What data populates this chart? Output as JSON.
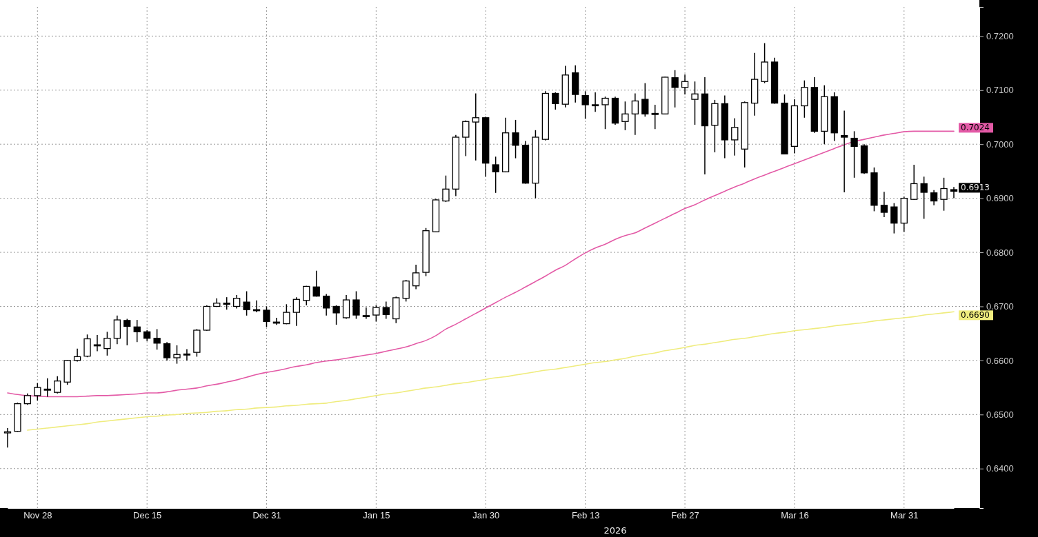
{
  "chart_data": {
    "type": "candlestick",
    "categories": [
      null,
      null,
      null,
      "Nov 28",
      null,
      null,
      null,
      null,
      null,
      null,
      null,
      null,
      null,
      null,
      "Dec 15",
      null,
      null,
      null,
      null,
      null,
      null,
      null,
      null,
      null,
      null,
      null,
      "Dec 31",
      null,
      null,
      null,
      null,
      null,
      null,
      null,
      null,
      null,
      null,
      "Jan 15",
      null,
      null,
      null,
      null,
      null,
      null,
      null,
      null,
      null,
      null,
      "Jan 30",
      null,
      null,
      null,
      null,
      null,
      null,
      null,
      null,
      null,
      "Feb 13",
      null,
      null,
      null,
      null,
      null,
      null,
      null,
      null,
      null,
      "Feb 27",
      null,
      null,
      null,
      null,
      null,
      null,
      null,
      null,
      null,
      null,
      "Mar 16",
      null,
      null,
      null,
      null,
      null,
      null,
      null,
      null,
      null,
      null,
      "Mar 31",
      null,
      null,
      null,
      null,
      null
    ],
    "ohlc": [
      [
        0.6466,
        0.6475,
        0.6439,
        0.6468
      ],
      [
        0.6469,
        0.6522,
        0.6468,
        0.652
      ],
      [
        0.652,
        0.6539,
        0.6518,
        0.6535
      ],
      [
        0.6535,
        0.6558,
        0.6526,
        0.655
      ],
      [
        0.6547,
        0.6567,
        0.6533,
        0.6545
      ],
      [
        0.6541,
        0.6571,
        0.6539,
        0.6562
      ],
      [
        0.656,
        0.6601,
        0.6555,
        0.66
      ],
      [
        0.66,
        0.6622,
        0.6598,
        0.6607
      ],
      [
        0.6608,
        0.6648,
        0.6606,
        0.664
      ],
      [
        0.6629,
        0.6647,
        0.6617,
        0.6627
      ],
      [
        0.6622,
        0.6653,
        0.6609,
        0.6641
      ],
      [
        0.6641,
        0.6683,
        0.663,
        0.6675
      ],
      [
        0.6674,
        0.6677,
        0.6628,
        0.6663
      ],
      [
        0.6662,
        0.6675,
        0.6634,
        0.6653
      ],
      [
        0.6653,
        0.6656,
        0.6636,
        0.6641
      ],
      [
        0.6641,
        0.6658,
        0.662,
        0.6632
      ],
      [
        0.6631,
        0.6634,
        0.66,
        0.6605
      ],
      [
        0.6605,
        0.6628,
        0.6594,
        0.6611
      ],
      [
        0.6612,
        0.6621,
        0.66,
        0.661
      ],
      [
        0.6615,
        0.6658,
        0.6607,
        0.6656
      ],
      [
        0.6656,
        0.6702,
        0.6655,
        0.67
      ],
      [
        0.67,
        0.6715,
        0.6699,
        0.6706
      ],
      [
        0.6706,
        0.6717,
        0.6694,
        0.6704
      ],
      [
        0.67,
        0.6721,
        0.6696,
        0.6715
      ],
      [
        0.6708,
        0.6728,
        0.6683,
        0.6694
      ],
      [
        0.6694,
        0.6711,
        0.6689,
        0.6692
      ],
      [
        0.6693,
        0.67,
        0.6662,
        0.6672
      ],
      [
        0.6671,
        0.6679,
        0.6666,
        0.6669
      ],
      [
        0.6668,
        0.6704,
        0.6667,
        0.6689
      ],
      [
        0.6689,
        0.6717,
        0.6664,
        0.6713
      ],
      [
        0.6711,
        0.6738,
        0.6702,
        0.6737
      ],
      [
        0.6736,
        0.6766,
        0.6718,
        0.6719
      ],
      [
        0.6719,
        0.6723,
        0.6683,
        0.6697
      ],
      [
        0.67,
        0.6702,
        0.6666,
        0.6688
      ],
      [
        0.6679,
        0.6721,
        0.6677,
        0.6712
      ],
      [
        0.6712,
        0.6728,
        0.6677,
        0.6684
      ],
      [
        0.6683,
        0.6698,
        0.6677,
        0.6681
      ],
      [
        0.6684,
        0.6702,
        0.6672,
        0.6698
      ],
      [
        0.6698,
        0.6709,
        0.6677,
        0.6685
      ],
      [
        0.6677,
        0.6718,
        0.6669,
        0.6716
      ],
      [
        0.6715,
        0.6749,
        0.6709,
        0.6747
      ],
      [
        0.6738,
        0.6777,
        0.6732,
        0.6762
      ],
      [
        0.6763,
        0.6845,
        0.6756,
        0.684
      ],
      [
        0.6838,
        0.6899,
        0.6837,
        0.6897
      ],
      [
        0.6895,
        0.6942,
        0.6893,
        0.6917
      ],
      [
        0.6917,
        0.7017,
        0.6904,
        0.7013
      ],
      [
        0.7013,
        0.7044,
        0.6978,
        0.7042
      ],
      [
        0.7041,
        0.7094,
        0.697,
        0.7049
      ],
      [
        0.7049,
        0.7051,
        0.694,
        0.6965
      ],
      [
        0.6962,
        0.6977,
        0.691,
        0.6949
      ],
      [
        0.6949,
        0.7049,
        0.6948,
        0.7021
      ],
      [
        0.7021,
        0.7045,
        0.6974,
        0.6998
      ],
      [
        0.6998,
        0.7006,
        0.6927,
        0.6928
      ],
      [
        0.6928,
        0.7026,
        0.69,
        0.7013
      ],
      [
        0.7009,
        0.7098,
        0.7007,
        0.7094
      ],
      [
        0.7094,
        0.7096,
        0.7064,
        0.7075
      ],
      [
        0.7074,
        0.7145,
        0.7068,
        0.7128
      ],
      [
        0.7132,
        0.7146,
        0.7077,
        0.7092
      ],
      [
        0.709,
        0.7098,
        0.7047,
        0.7073
      ],
      [
        0.7073,
        0.7096,
        0.706,
        0.7072
      ],
      [
        0.7073,
        0.7088,
        0.7028,
        0.7085
      ],
      [
        0.7085,
        0.7088,
        0.7036,
        0.7039
      ],
      [
        0.7042,
        0.7079,
        0.7026,
        0.7056
      ],
      [
        0.7056,
        0.7094,
        0.7017,
        0.708
      ],
      [
        0.7083,
        0.7113,
        0.7051,
        0.7056
      ],
      [
        0.7057,
        0.7073,
        0.7028,
        0.7055
      ],
      [
        0.7056,
        0.7125,
        0.7055,
        0.7124
      ],
      [
        0.7123,
        0.7137,
        0.7068,
        0.7105
      ],
      [
        0.7105,
        0.7129,
        0.7092,
        0.7116
      ],
      [
        0.7083,
        0.7116,
        0.7036,
        0.7093
      ],
      [
        0.7093,
        0.7124,
        0.6944,
        0.7034
      ],
      [
        0.7035,
        0.7082,
        0.6985,
        0.7075
      ],
      [
        0.7075,
        0.709,
        0.6974,
        0.7008
      ],
      [
        0.7008,
        0.7048,
        0.6979,
        0.7031
      ],
      [
        0.6991,
        0.7079,
        0.6957,
        0.7077
      ],
      [
        0.7076,
        0.7169,
        0.7053,
        0.712
      ],
      [
        0.7116,
        0.7187,
        0.7113,
        0.7152
      ],
      [
        0.7152,
        0.716,
        0.7075,
        0.7076
      ],
      [
        0.7076,
        0.7092,
        0.6982,
        0.6982
      ],
      [
        0.6996,
        0.7083,
        0.6983,
        0.7071
      ],
      [
        0.7071,
        0.7118,
        0.7049,
        0.7105
      ],
      [
        0.7105,
        0.7124,
        0.7021,
        0.7024
      ],
      [
        0.7024,
        0.7109,
        0.7,
        0.7088
      ],
      [
        0.7088,
        0.7096,
        0.7006,
        0.7021
      ],
      [
        0.7016,
        0.7062,
        0.6911,
        0.7013
      ],
      [
        0.7011,
        0.7024,
        0.6938,
        0.6996
      ],
      [
        0.6997,
        0.7,
        0.6945,
        0.6947
      ],
      [
        0.6947,
        0.6957,
        0.6876,
        0.6887
      ],
      [
        0.6887,
        0.6912,
        0.6865,
        0.6874
      ],
      [
        0.6884,
        0.6891,
        0.6835,
        0.6854
      ],
      [
        0.6854,
        0.6903,
        0.6838,
        0.69
      ],
      [
        0.6898,
        0.6962,
        0.6897,
        0.6927
      ],
      [
        0.6927,
        0.694,
        0.6862,
        0.6911
      ],
      [
        0.691,
        0.6915,
        0.6887,
        0.6895
      ],
      [
        0.6898,
        0.6938,
        0.6877,
        0.6918
      ],
      [
        0.6916,
        0.6921,
        0.69,
        0.6913
      ]
    ],
    "series": [
      {
        "type": "line",
        "color": "#e35aa6",
        "values": [
          0.654,
          0.6537,
          0.6535,
          0.6534,
          0.6533,
          0.6533,
          0.6533,
          0.6533,
          0.6534,
          0.6535,
          0.6535,
          0.6536,
          0.6537,
          0.6538,
          0.654,
          0.654,
          0.6542,
          0.6545,
          0.6547,
          0.6549,
          0.6553,
          0.6556,
          0.656,
          0.6564,
          0.6569,
          0.6574,
          0.6578,
          0.6581,
          0.6585,
          0.6589,
          0.6592,
          0.6596,
          0.6599,
          0.6601,
          0.6604,
          0.6607,
          0.661,
          0.6613,
          0.6617,
          0.6621,
          0.6625,
          0.6631,
          0.6637,
          0.6646,
          0.6658,
          0.6667,
          0.6677,
          0.6687,
          0.6697,
          0.6707,
          0.6717,
          0.6726,
          0.6736,
          0.6746,
          0.6756,
          0.6767,
          0.6776,
          0.6788,
          0.6799,
          0.6808,
          0.6815,
          0.6824,
          0.6831,
          0.6836,
          0.6845,
          0.6854,
          0.6863,
          0.6872,
          0.6881,
          0.6888,
          0.6897,
          0.6905,
          0.6913,
          0.6921,
          0.6928,
          0.6936,
          0.6943,
          0.695,
          0.6957,
          0.6964,
          0.6971,
          0.6978,
          0.6985,
          0.6992,
          0.6999,
          0.7005,
          0.7009,
          0.7013,
          0.7017,
          0.702,
          0.7023,
          0.7024,
          0.7024,
          0.7024,
          0.7024,
          0.7024
        ],
        "value_labels": [
          null,
          null,
          null,
          null,
          null,
          null,
          null,
          null,
          null,
          null,
          null,
          null,
          null,
          null,
          null,
          null,
          null,
          null,
          null,
          null,
          null,
          null,
          null,
          null,
          null,
          null,
          null,
          null,
          null,
          null,
          null,
          null,
          null,
          null,
          null,
          null,
          null,
          null,
          null,
          null,
          null,
          null,
          null,
          null,
          null,
          null,
          null,
          null,
          null,
          null,
          null,
          null,
          null,
          null,
          null,
          null,
          null,
          null,
          null,
          null,
          null,
          null,
          null,
          null,
          null,
          null,
          null,
          null,
          null,
          null,
          null,
          null,
          null,
          null,
          null,
          null,
          null,
          null,
          null,
          null,
          null,
          null,
          null,
          null,
          null,
          null,
          null,
          null,
          null,
          null,
          null,
          null,
          null,
          null,
          null,
          "0.7024"
        ]
      },
      {
        "type": "line",
        "color": "#efec7e",
        "values": [
          null,
          null,
          0.6471,
          0.6473,
          0.6475,
          0.6477,
          0.6479,
          0.6481,
          0.6483,
          0.6486,
          0.6488,
          0.649,
          0.6492,
          0.6494,
          0.6496,
          0.6497,
          0.6499,
          0.65,
          0.6502,
          0.6503,
          0.6504,
          0.6506,
          0.6507,
          0.6509,
          0.651,
          0.6512,
          0.6513,
          0.6514,
          0.6516,
          0.6517,
          0.6519,
          0.652,
          0.6521,
          0.6524,
          0.6526,
          0.6529,
          0.6532,
          0.6535,
          0.6538,
          0.654,
          0.6543,
          0.6546,
          0.6549,
          0.6551,
          0.6554,
          0.6557,
          0.6559,
          0.6562,
          0.6565,
          0.6568,
          0.657,
          0.6573,
          0.6576,
          0.6579,
          0.6582,
          0.6584,
          0.6587,
          0.659,
          0.6593,
          0.6596,
          0.6598,
          0.6601,
          0.6604,
          0.6608,
          0.6611,
          0.6614,
          0.6618,
          0.6621,
          0.6624,
          0.6628,
          0.663,
          0.6633,
          0.6636,
          0.6639,
          0.6641,
          0.6644,
          0.6647,
          0.665,
          0.6652,
          0.6655,
          0.6657,
          0.6659,
          0.6661,
          0.6664,
          0.6666,
          0.6668,
          0.667,
          0.6673,
          0.6675,
          0.6677,
          0.6679,
          0.6681,
          0.6684,
          0.6686,
          0.6688,
          0.669
        ],
        "value_labels": [
          null,
          null,
          null,
          null,
          null,
          null,
          null,
          null,
          null,
          null,
          null,
          null,
          null,
          null,
          null,
          null,
          null,
          null,
          null,
          null,
          null,
          null,
          null,
          null,
          null,
          null,
          null,
          null,
          null,
          null,
          null,
          null,
          null,
          null,
          null,
          null,
          null,
          null,
          null,
          null,
          null,
          null,
          null,
          null,
          null,
          null,
          null,
          null,
          null,
          null,
          null,
          null,
          null,
          null,
          null,
          null,
          null,
          null,
          null,
          null,
          null,
          null,
          null,
          null,
          null,
          null,
          null,
          null,
          null,
          null,
          null,
          null,
          null,
          null,
          null,
          null,
          null,
          null,
          null,
          null,
          null,
          null,
          null,
          null,
          null,
          null,
          null,
          null,
          null,
          null,
          null,
          null,
          null,
          null,
          null,
          "0.6690"
        ]
      }
    ],
    "xlabel": "2026",
    "ylim": [
      0.6327,
      0.7254
    ],
    "yticks": [
      {
        "value": 0.64,
        "label": "0.6400"
      },
      {
        "value": 0.65,
        "label": "0.6500"
      },
      {
        "value": 0.66,
        "label": "0.6600"
      },
      {
        "value": 0.67,
        "label": "0.6700"
      },
      {
        "value": 0.68,
        "label": "0.6800"
      },
      {
        "value": 0.69,
        "label": "0.6900"
      },
      {
        "value": 0.7,
        "label": "0.7000"
      },
      {
        "value": 0.71,
        "label": "0.7100"
      },
      {
        "value": 0.72,
        "label": "0.7200"
      }
    ],
    "grid": true,
    "value_labels": [
      null,
      null,
      null,
      null,
      null,
      null,
      null,
      null,
      null,
      null,
      null,
      null,
      null,
      null,
      null,
      null,
      null,
      null,
      null,
      null,
      null,
      null,
      null,
      null,
      null,
      null,
      null,
      null,
      null,
      null,
      null,
      null,
      null,
      null,
      null,
      null,
      null,
      null,
      null,
      null,
      null,
      null,
      null,
      null,
      null,
      null,
      null,
      null,
      null,
      null,
      null,
      null,
      null,
      null,
      null,
      null,
      null,
      null,
      null,
      null,
      null,
      null,
      null,
      null,
      null,
      null,
      null,
      null,
      null,
      null,
      null,
      null,
      null,
      null,
      null,
      null,
      null,
      null,
      null,
      null,
      null,
      null,
      null,
      null,
      null,
      null,
      null,
      null,
      null,
      null,
      null,
      null,
      null,
      null,
      null,
      "0.6913"
    ]
  }
}
